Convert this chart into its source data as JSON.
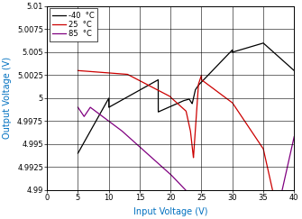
{
  "title": "",
  "xlabel": "Input Voltage (V)",
  "ylabel": "Output Voltage (V)",
  "xlim": [
    0,
    40
  ],
  "ylim": [
    4.99,
    5.01
  ],
  "yticks": [
    4.99,
    4.9925,
    4.995,
    4.9975,
    5.0,
    5.0025,
    5.005,
    5.0075,
    5.01
  ],
  "xticks": [
    0,
    5,
    10,
    15,
    20,
    25,
    30,
    35,
    40
  ],
  "colors": {
    "neg40": "#000000",
    "pos25": "#cc0000",
    "pos85": "#800080"
  },
  "legend": [
    "-40  °C",
    "25  °C",
    "85  °C"
  ],
  "background_color": "#ffffff"
}
